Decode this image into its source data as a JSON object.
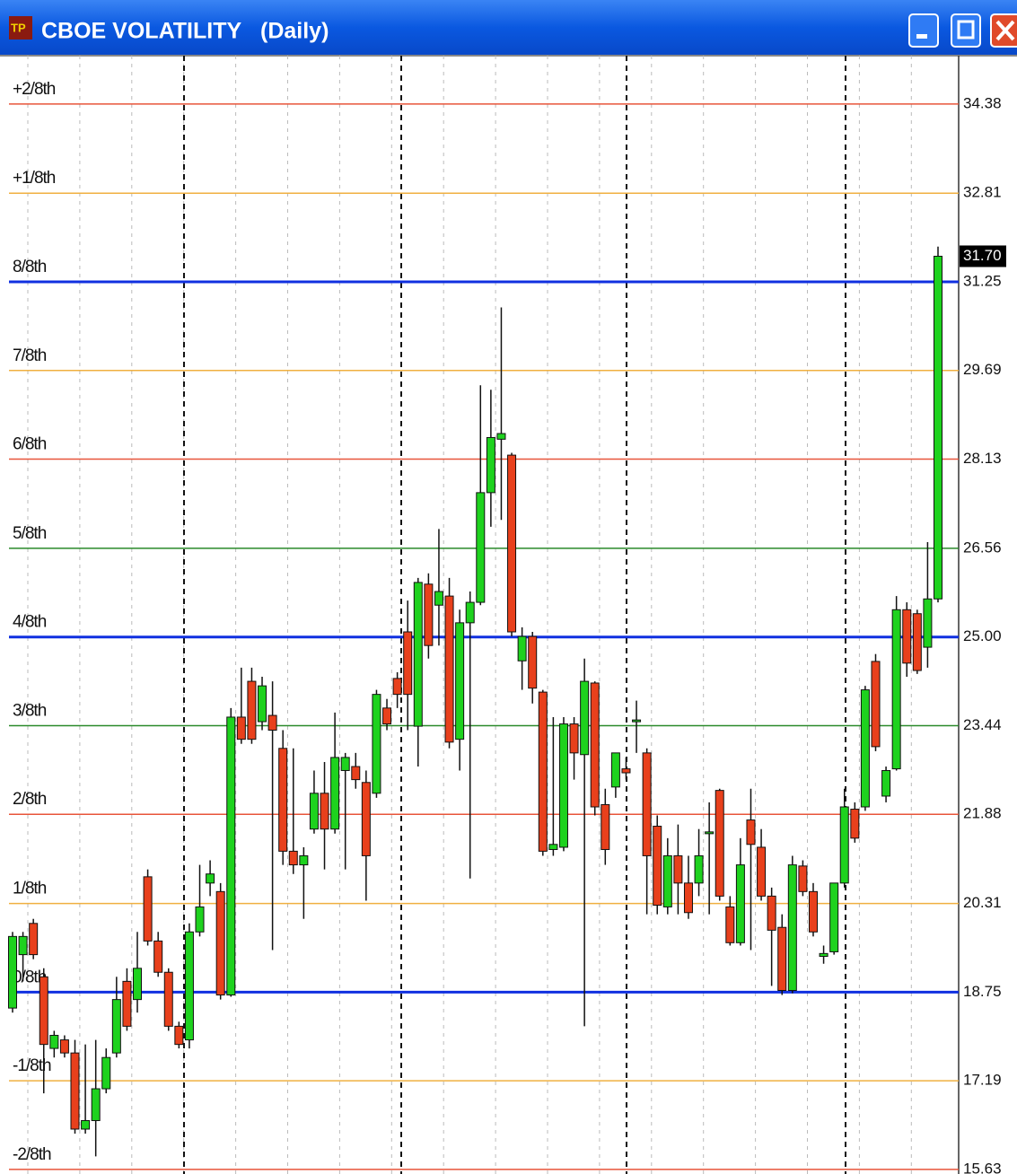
{
  "chart_data": {
    "type": "candlestick",
    "title": "CBOE VOLATILITY",
    "subtitle": "(Daily)",
    "categories": [
      null,
      null,
      null,
      null,
      null,
      null,
      null,
      null,
      null,
      null,
      null,
      null,
      null,
      null,
      null,
      null,
      null,
      null,
      null,
      null,
      null,
      null,
      null,
      null,
      null,
      null,
      null,
      null,
      null,
      null,
      null,
      null,
      null,
      null,
      null,
      null,
      null,
      null,
      null,
      null,
      null,
      null,
      null,
      null,
      null,
      null,
      null,
      null,
      null,
      null,
      null,
      null,
      null,
      null,
      null,
      null,
      null,
      null,
      null,
      null,
      null,
      null,
      null,
      null,
      null,
      null,
      null,
      null,
      null,
      null,
      null,
      null,
      null,
      null,
      null,
      null,
      null,
      null,
      null,
      null,
      null,
      null,
      null,
      null,
      null,
      null,
      null,
      null,
      null,
      null
    ],
    "open": [
      18.47,
      19.41,
      19.96,
      19.02,
      17.76,
      17.91,
      17.68,
      16.34,
      16.49,
      17.05,
      17.68,
      18.94,
      18.62,
      20.78,
      19.65,
      19.1,
      18.15,
      17.91,
      19.81,
      20.67,
      20.52,
      18.7,
      23.59,
      24.22,
      23.51,
      23.62,
      23.04,
      21.23,
      20.99,
      21.62,
      22.25,
      21.62,
      22.65,
      22.72,
      22.44,
      22.25,
      23.75,
      24.27,
      25.09,
      23.43,
      25.93,
      25.56,
      25.72,
      23.2,
      25.25,
      25.61,
      27.54,
      28.48,
      28.2,
      24.58,
      25.01,
      24.03,
      21.26,
      21.3,
      23.47,
      22.93,
      24.19,
      22.05,
      22.36,
      22.68,
      23.51,
      22.96,
      21.67,
      20.25,
      21.15,
      20.67,
      20.67,
      21.54,
      22.3,
      20.25,
      19.62,
      21.78,
      21.3,
      20.44,
      19.89,
      18.78,
      20.97,
      20.52,
      19.38,
      19.46,
      20.67,
      21.97,
      22.01,
      24.57,
      22.2,
      22.68,
      25.48,
      25.41,
      24.82,
      25.67
    ],
    "high": [
      19.81,
      19.81,
      20.04,
      19.17,
      18.07,
      17.99,
      17.91,
      17.83,
      17.91,
      17.76,
      19.02,
      19.17,
      19.81,
      20.91,
      19.81,
      19.17,
      18.23,
      19.96,
      20.99,
      21.07,
      20.67,
      23.75,
      24.46,
      24.46,
      24.3,
      24.22,
      23.36,
      23.04,
      21.3,
      22.65,
      22.8,
      23.67,
      22.96,
      22.96,
      22.65,
      24.07,
      23.91,
      24.38,
      25.64,
      26.04,
      26.12,
      26.9,
      26.04,
      25.48,
      25.8,
      29.43,
      29.35,
      30.8,
      28.24,
      25.17,
      25.09,
      24.07,
      23.59,
      23.59,
      23.59,
      24.62,
      24.22,
      22.33,
      22.96,
      22.88,
      23.88,
      23.04,
      21.86,
      21.46,
      21.7,
      21.15,
      21.62,
      22.09,
      22.33,
      20.44,
      21.46,
      22.33,
      21.62,
      20.59,
      20.12,
      21.15,
      21.07,
      20.67,
      19.57,
      20.67,
      22.33,
      22.09,
      24.14,
      24.7,
      22.72,
      25.72,
      25.61,
      25.48,
      26.67,
      31.87
    ],
    "low": [
      18.39,
      18.94,
      19.33,
      16.97,
      17.6,
      17.6,
      16.26,
      16.26,
      15.86,
      16.97,
      17.6,
      18.07,
      18.39,
      19.57,
      19.02,
      18.07,
      17.76,
      17.76,
      19.73,
      20.44,
      18.62,
      18.67,
      23.12,
      23.12,
      23.36,
      19.49,
      20.99,
      20.83,
      20.04,
      21.54,
      20.91,
      21.54,
      20.91,
      22.33,
      20.36,
      22.17,
      23.36,
      23.75,
      23.36,
      22.72,
      24.62,
      24.85,
      23.04,
      22.65,
      20.75,
      25.56,
      26.94,
      27.06,
      25.01,
      24.07,
      23.83,
      21.15,
      21.15,
      21.23,
      22.49,
      18.15,
      21.86,
      20.99,
      22.17,
      22.49,
      22.96,
      20.12,
      20.12,
      20.12,
      20.12,
      20.04,
      20.44,
      20.12,
      20.36,
      19.57,
      19.57,
      19.49,
      20.36,
      18.86,
      18.7,
      18.73,
      20.44,
      19.73,
      19.25,
      19.41,
      20.59,
      21.38,
      21.94,
      22.99,
      22.09,
      22.65,
      24.3,
      24.35,
      24.46,
      25.61
    ],
    "close": [
      19.73,
      19.73,
      19.41,
      17.83,
      17.99,
      17.68,
      16.34,
      16.49,
      17.05,
      17.6,
      18.62,
      18.15,
      19.17,
      19.65,
      19.1,
      18.15,
      17.83,
      19.81,
      20.25,
      20.83,
      18.7,
      23.59,
      23.2,
      23.2,
      24.14,
      23.36,
      21.23,
      20.99,
      21.15,
      22.25,
      21.62,
      22.88,
      22.88,
      22.49,
      21.15,
      23.99,
      23.47,
      23.99,
      23.99,
      25.96,
      24.85,
      25.8,
      23.15,
      25.25,
      25.61,
      27.54,
      28.51,
      28.58,
      25.09,
      25.01,
      24.1,
      21.23,
      21.35,
      23.47,
      22.96,
      24.22,
      22.01,
      21.26,
      22.96,
      22.61,
      23.54,
      21.15,
      20.28,
      21.15,
      20.67,
      20.15,
      21.15,
      21.57,
      20.44,
      19.62,
      20.99,
      21.35,
      20.44,
      19.84,
      18.78,
      20.99,
      20.52,
      19.81,
      19.43,
      20.67,
      22.01,
      21.46,
      24.07,
      23.07,
      22.65,
      25.48,
      24.54,
      24.41,
      25.67,
      31.7
    ],
    "up_color": "#1ed21e",
    "down_color": "#e8401c",
    "ylim": [
      15.55,
      35.23
    ],
    "yticks": [
      34.38,
      32.81,
      31.25,
      29.69,
      28.13,
      26.56,
      {
        "value": 25,
        "label": "25.00"
      },
      23.44,
      21.88,
      20.31,
      18.75,
      17.19,
      15.63
    ],
    "level_names": [
      "+2/8th",
      "+1/8th",
      "8/8th",
      "7/8th",
      "6/8th",
      "5/8th",
      "4/8th",
      "3/8th",
      "2/8th",
      "1/8th",
      "0/8th",
      "-1/8th",
      "-2/8th"
    ],
    "level_colors": [
      "#e8553a",
      "#f0b040",
      "#1030e0",
      "#f0b040",
      "#e8553a",
      "#2a8a2a",
      "#1030e0",
      "#2a8a2a",
      "#e8553a",
      "#f0b040",
      "#1030e0",
      "#f0b040",
      "#e8553a"
    ],
    "level_widths": [
      1.5,
      1.5,
      3,
      1.5,
      1.5,
      1.5,
      3,
      1.5,
      1.5,
      1.5,
      3,
      1.5,
      1.5
    ],
    "last_price": {
      "value": 31.7,
      "label": "31.70"
    }
  }
}
